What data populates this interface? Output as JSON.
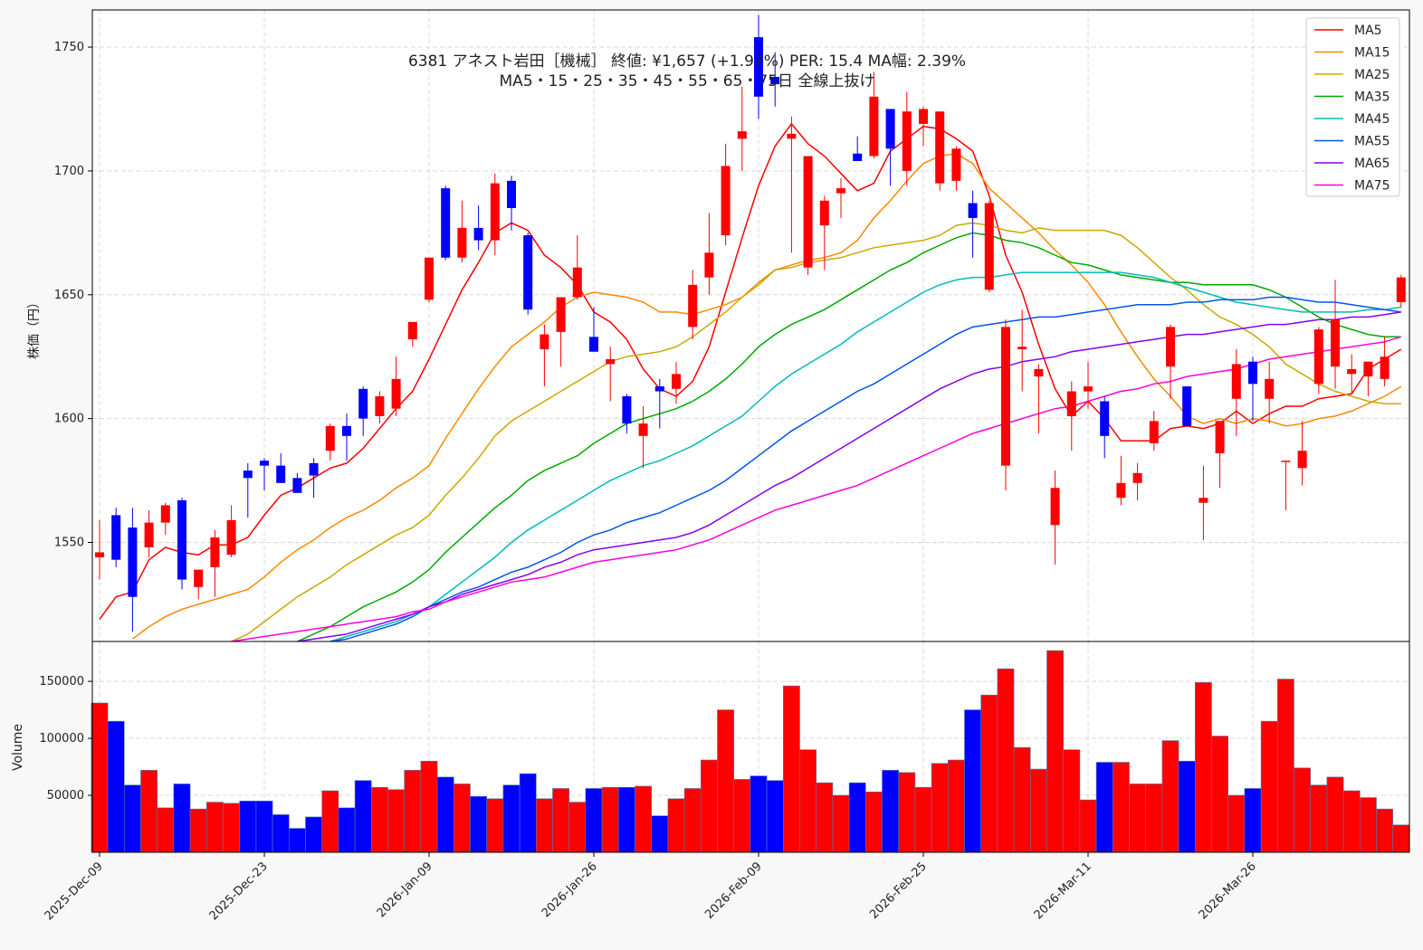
{
  "chart_data": {
    "type": "candlestick",
    "title_line1": "6381  アネスト岩田［機械］ 終値: ¥1,657 (+1.97%)  PER: 15.4  MA幅: 2.39%",
    "title_line2": "MA5・15・25・35・45・55・65・75日 全線上抜け",
    "price_ylabel": "株価（円）",
    "volume_ylabel": "Volume",
    "price_ylim": [
      1510,
      1765
    ],
    "price_yticks": [
      1550,
      1600,
      1650,
      1700,
      1750
    ],
    "volume_ylim": [
      0,
      185000
    ],
    "volume_yticks": [
      50000,
      100000,
      150000
    ],
    "volume_tick_labels": [
      "50000",
      "100000",
      "150000"
    ],
    "x_tick_labels": [
      "2025-Dec-09",
      "2025-Dec-23",
      "2026-Jan-09",
      "2026-Jan-26",
      "2026-Feb-09",
      "2026-Feb-25",
      "2026-Mar-11",
      "2026-Mar-26"
    ],
    "x_tick_index": [
      0,
      10,
      20,
      30,
      40,
      50,
      60,
      70
    ],
    "grid": true,
    "legend_position": "top-right",
    "up_color": "#ff0000",
    "down_color": "#0000ff",
    "candles": [
      [
        1544,
        1559,
        1535,
        1546
      ],
      [
        1561,
        1564,
        1540,
        1543
      ],
      [
        1556,
        1564,
        1514,
        1528
      ],
      [
        1548,
        1563,
        1544,
        1558
      ],
      [
        1558,
        1566,
        1553,
        1565
      ],
      [
        1567,
        1568,
        1531,
        1535
      ],
      [
        1532,
        1539,
        1527,
        1539
      ],
      [
        1540,
        1555,
        1528,
        1552
      ],
      [
        1545,
        1565,
        1544,
        1559
      ],
      [
        1579,
        1582,
        1560,
        1576
      ],
      [
        1583,
        1584,
        1571,
        1581
      ],
      [
        1581,
        1586,
        1574,
        1574
      ],
      [
        1576,
        1578,
        1570,
        1570
      ],
      [
        1582,
        1584,
        1568,
        1577
      ],
      [
        1587,
        1598,
        1583,
        1597
      ],
      [
        1597,
        1602,
        1583,
        1593
      ],
      [
        1612,
        1613,
        1593,
        1600
      ],
      [
        1601,
        1611,
        1598,
        1609
      ],
      [
        1604,
        1625,
        1601,
        1616
      ],
      [
        1632,
        1639,
        1629,
        1639
      ],
      [
        1648,
        1665,
        1647,
        1665
      ],
      [
        1693,
        1694,
        1664,
        1665
      ],
      [
        1665,
        1688,
        1663,
        1677
      ],
      [
        1677,
        1686,
        1668,
        1672
      ],
      [
        1672,
        1699,
        1666,
        1695
      ],
      [
        1696,
        1698,
        1676,
        1685
      ],
      [
        1674,
        1675,
        1642,
        1644
      ],
      [
        1628,
        1638,
        1613,
        1634
      ],
      [
        1635,
        1648,
        1621,
        1649
      ],
      [
        1649,
        1674,
        1648,
        1661
      ],
      [
        1633,
        1645,
        1627,
        1627
      ],
      [
        1622,
        1629,
        1607,
        1624
      ],
      [
        1609,
        1610,
        1594,
        1598
      ],
      [
        1593,
        1605,
        1580,
        1598
      ],
      [
        1613,
        1616,
        1596,
        1611
      ],
      [
        1612,
        1623,
        1606,
        1618
      ],
      [
        1637,
        1660,
        1632,
        1654
      ],
      [
        1657,
        1683,
        1650,
        1667
      ],
      [
        1674,
        1711,
        1670,
        1702
      ],
      [
        1713,
        1734,
        1700,
        1716
      ],
      [
        1754,
        1763,
        1721,
        1730
      ],
      [
        1738,
        1748,
        1726,
        1735
      ],
      [
        1713,
        1722,
        1667,
        1715
      ],
      [
        1661,
        1706,
        1658,
        1706
      ],
      [
        1678,
        1690,
        1660,
        1688
      ],
      [
        1691,
        1697,
        1681,
        1693
      ],
      [
        1707,
        1714,
        1704,
        1704
      ],
      [
        1706,
        1740,
        1705,
        1730
      ],
      [
        1725,
        1725,
        1694,
        1709
      ],
      [
        1700,
        1732,
        1694,
        1724
      ],
      [
        1719,
        1726,
        1710,
        1725
      ],
      [
        1695,
        1724,
        1692,
        1724
      ],
      [
        1696,
        1710,
        1692,
        1709
      ],
      [
        1687,
        1692,
        1665,
        1681
      ],
      [
        1652,
        1688,
        1651,
        1687
      ],
      [
        1581,
        1640,
        1571,
        1637
      ],
      [
        1628,
        1644,
        1611,
        1629
      ],
      [
        1617,
        1622,
        1594,
        1620
      ],
      [
        1557,
        1579,
        1541,
        1572
      ],
      [
        1601,
        1615,
        1587,
        1611
      ],
      [
        1611,
        1623,
        1604,
        1613
      ],
      [
        1607,
        1609,
        1584,
        1593
      ],
      [
        1568,
        1585,
        1565,
        1574
      ],
      [
        1574,
        1582,
        1567,
        1578
      ],
      [
        1590,
        1603,
        1587,
        1599
      ],
      [
        1621,
        1638,
        1608,
        1637
      ],
      [
        1613,
        1613,
        1597,
        1597
      ],
      [
        1566,
        1581,
        1551,
        1568
      ],
      [
        1586,
        1599,
        1572,
        1599
      ],
      [
        1608,
        1628,
        1593,
        1622
      ],
      [
        1623,
        1625,
        1599,
        1614
      ],
      [
        1608,
        1623,
        1598,
        1616
      ],
      [
        1583,
        1583,
        1563,
        1583
      ],
      [
        1580,
        1599,
        1573,
        1587
      ],
      [
        1614,
        1637,
        1610,
        1636
      ],
      [
        1621,
        1656,
        1612,
        1640
      ],
      [
        1618,
        1626,
        1610,
        1620
      ],
      [
        1617,
        1623,
        1609,
        1623
      ],
      [
        1616,
        1633,
        1613,
        1625
      ],
      [
        1647,
        1658,
        1645,
        1657
      ]
    ],
    "volume": [
      131000,
      115000,
      59000,
      72000,
      39000,
      60000,
      38000,
      44000,
      43000,
      45000,
      45000,
      33000,
      21000,
      31000,
      54000,
      39000,
      63000,
      57000,
      55000,
      72000,
      80000,
      66000,
      60000,
      49000,
      47000,
      59000,
      69000,
      47000,
      56000,
      44000,
      56000,
      57000,
      57000,
      58000,
      32000,
      47000,
      56000,
      81000,
      125000,
      64000,
      67000,
      63000,
      146000,
      90000,
      61000,
      50000,
      61000,
      53000,
      72000,
      70000,
      57000,
      78000,
      81000,
      125000,
      138000,
      161000,
      92000,
      73000,
      177000,
      90000,
      46000,
      79000,
      79000,
      60000,
      60000,
      98000,
      80000,
      149000,
      102000,
      50000,
      56000,
      115000,
      152000,
      74000,
      59000,
      66000,
      54000,
      48000,
      38000,
      24000
    ],
    "series": [
      {
        "name": "MA5",
        "color": "#ff0000",
        "values": [
          1519,
          1528,
          1530,
          1543,
          1548,
          1546,
          1545,
          1549,
          1549,
          1552,
          1561,
          1569,
          1572,
          1576,
          1580,
          1582,
          1588,
          1596,
          1604,
          1611,
          1624,
          1638,
          1652,
          1663,
          1675,
          1679,
          1676,
          1666,
          1661,
          1654,
          1643,
          1639,
          1632,
          1620,
          1612,
          1609,
          1615,
          1629,
          1651,
          1673,
          1694,
          1710,
          1719,
          1711,
          1706,
          1699,
          1692,
          1695,
          1708,
          1713,
          1718,
          1717,
          1713,
          1708,
          1690,
          1666,
          1651,
          1630,
          1612,
          1601,
          1607,
          1600,
          1591,
          1591,
          1591,
          1596,
          1597,
          1596,
          1598,
          1603,
          1598,
          1602,
          1605,
          1605,
          1608,
          1609,
          1610,
          1620,
          1624,
          1628
        ]
      },
      {
        "name": "MA15",
        "color": "#ff8800",
        "values": [
          null,
          null,
          1511,
          1516,
          1520,
          1523,
          1525,
          1527,
          1529,
          1531,
          1536,
          1542,
          1547,
          1551,
          1556,
          1560,
          1563,
          1567,
          1572,
          1576,
          1581,
          1592,
          1602,
          1612,
          1621,
          1629,
          1634,
          1639,
          1645,
          1649,
          1651,
          1650,
          1649,
          1647,
          1643,
          1643,
          1642,
          1644,
          1646,
          1649,
          1654,
          1660,
          1662,
          1664,
          1665,
          1667,
          1672,
          1681,
          1688,
          1696,
          1703,
          1706,
          1707,
          1703,
          1693,
          1687,
          1681,
          1675,
          1668,
          1662,
          1655,
          1646,
          1635,
          1625,
          1616,
          1609,
          1601,
          1598,
          1600,
          1598,
          1600,
          1599,
          1597,
          1598,
          1600,
          1601,
          1603,
          1606,
          1609,
          1613
        ]
      },
      {
        "name": "MA25",
        "color": "#cca800",
        "values": [
          null,
          null,
          null,
          null,
          null,
          null,
          null,
          null,
          1510,
          1513,
          1518,
          1523,
          1528,
          1532,
          1536,
          1541,
          1545,
          1549,
          1553,
          1556,
          1561,
          1569,
          1576,
          1584,
          1593,
          1599,
          1603,
          1607,
          1611,
          1615,
          1619,
          1623,
          1625,
          1626,
          1627,
          1629,
          1633,
          1638,
          1643,
          1649,
          1655,
          1660,
          1661,
          1663,
          1664,
          1665,
          1667,
          1669,
          1670,
          1671,
          1672,
          1674,
          1678,
          1679,
          1678,
          1676,
          1675,
          1677,
          1676,
          1676,
          1676,
          1676,
          1674,
          1669,
          1663,
          1657,
          1652,
          1646,
          1641,
          1638,
          1634,
          1629,
          1622,
          1618,
          1614,
          1611,
          1609,
          1607,
          1606,
          1606
        ]
      },
      {
        "name": "MA35",
        "color": "#00aa00",
        "values": [
          null,
          null,
          null,
          null,
          null,
          null,
          null,
          null,
          null,
          null,
          null,
          null,
          1510,
          1513,
          1516,
          1520,
          1524,
          1527,
          1530,
          1534,
          1539,
          1546,
          1552,
          1558,
          1564,
          1569,
          1575,
          1579,
          1582,
          1585,
          1590,
          1594,
          1598,
          1600,
          1602,
          1604,
          1607,
          1611,
          1616,
          1622,
          1629,
          1634,
          1638,
          1641,
          1644,
          1648,
          1652,
          1656,
          1660,
          1663,
          1667,
          1670,
          1673,
          1675,
          1674,
          1672,
          1671,
          1669,
          1666,
          1663,
          1662,
          1660,
          1658,
          1657,
          1656,
          1655,
          1655,
          1654,
          1654,
          1654,
          1654,
          1652,
          1649,
          1645,
          1641,
          1638,
          1636,
          1634,
          1633,
          1633
        ]
      },
      {
        "name": "MA45",
        "color": "#00bbbb",
        "values": [
          null,
          null,
          null,
          null,
          null,
          null,
          null,
          null,
          null,
          null,
          null,
          null,
          null,
          null,
          1510,
          1512,
          1514,
          1516,
          1518,
          1521,
          1524,
          1529,
          1534,
          1539,
          1544,
          1550,
          1555,
          1559,
          1563,
          1567,
          1571,
          1575,
          1578,
          1581,
          1583,
          1586,
          1589,
          1593,
          1597,
          1601,
          1607,
          1613,
          1618,
          1622,
          1626,
          1630,
          1635,
          1639,
          1643,
          1647,
          1651,
          1654,
          1656,
          1657,
          1657,
          1658,
          1659,
          1659,
          1659,
          1659,
          1659,
          1659,
          1659,
          1658,
          1657,
          1655,
          1653,
          1651,
          1649,
          1647,
          1646,
          1645,
          1644,
          1643,
          1643,
          1643,
          1643,
          1644,
          1644,
          1645
        ]
      },
      {
        "name": "MA55",
        "color": "#0055ee",
        "values": [
          null,
          null,
          null,
          null,
          null,
          null,
          null,
          null,
          null,
          null,
          null,
          null,
          null,
          null,
          1510,
          1511,
          1513,
          1515,
          1517,
          1520,
          1524,
          1527,
          1530,
          1532,
          1535,
          1538,
          1540,
          1543,
          1546,
          1550,
          1553,
          1555,
          1558,
          1560,
          1562,
          1565,
          1568,
          1571,
          1575,
          1580,
          1585,
          1590,
          1595,
          1599,
          1603,
          1607,
          1611,
          1614,
          1618,
          1622,
          1626,
          1630,
          1634,
          1637,
          1638,
          1639,
          1640,
          1641,
          1641,
          1642,
          1643,
          1644,
          1645,
          1646,
          1646,
          1646,
          1647,
          1647,
          1648,
          1648,
          1648,
          1649,
          1649,
          1648,
          1647,
          1647,
          1646,
          1645,
          1644,
          1643
        ]
      },
      {
        "name": "MA65",
        "color": "#8800ee",
        "values": [
          null,
          null,
          null,
          null,
          null,
          null,
          null,
          null,
          null,
          null,
          null,
          null,
          1510,
          1511,
          1512,
          1513,
          1515,
          1517,
          1519,
          1521,
          1524,
          1526,
          1529,
          1531,
          1533,
          1535,
          1537,
          1540,
          1542,
          1545,
          1547,
          1548,
          1549,
          1550,
          1551,
          1552,
          1554,
          1557,
          1561,
          1565,
          1569,
          1573,
          1576,
          1580,
          1584,
          1588,
          1592,
          1596,
          1600,
          1604,
          1608,
          1612,
          1615,
          1618,
          1620,
          1621,
          1623,
          1624,
          1625,
          1627,
          1628,
          1629,
          1630,
          1631,
          1632,
          1633,
          1634,
          1634,
          1635,
          1636,
          1637,
          1638,
          1638,
          1639,
          1640,
          1640,
          1641,
          1641,
          1642,
          1643
        ]
      },
      {
        "name": "MA75",
        "color": "#ff00dd",
        "values": [
          null,
          null,
          null,
          null,
          null,
          null,
          null,
          null,
          1510,
          1511,
          1512,
          1513,
          1514,
          1515,
          1516,
          1517,
          1518,
          1519,
          1520,
          1522,
          1523,
          1526,
          1528,
          1530,
          1532,
          1534,
          1535,
          1536,
          1538,
          1540,
          1542,
          1543,
          1544,
          1545,
          1546,
          1547,
          1549,
          1551,
          1554,
          1557,
          1560,
          1563,
          1565,
          1567,
          1569,
          1571,
          1573,
          1576,
          1579,
          1582,
          1585,
          1588,
          1591,
          1594,
          1596,
          1598,
          1600,
          1602,
          1604,
          1605,
          1607,
          1609,
          1611,
          1612,
          1614,
          1615,
          1617,
          1618,
          1619,
          1620,
          1622,
          1624,
          1625,
          1626,
          1627,
          1628,
          1629,
          1630,
          1631,
          1633
        ]
      }
    ]
  }
}
